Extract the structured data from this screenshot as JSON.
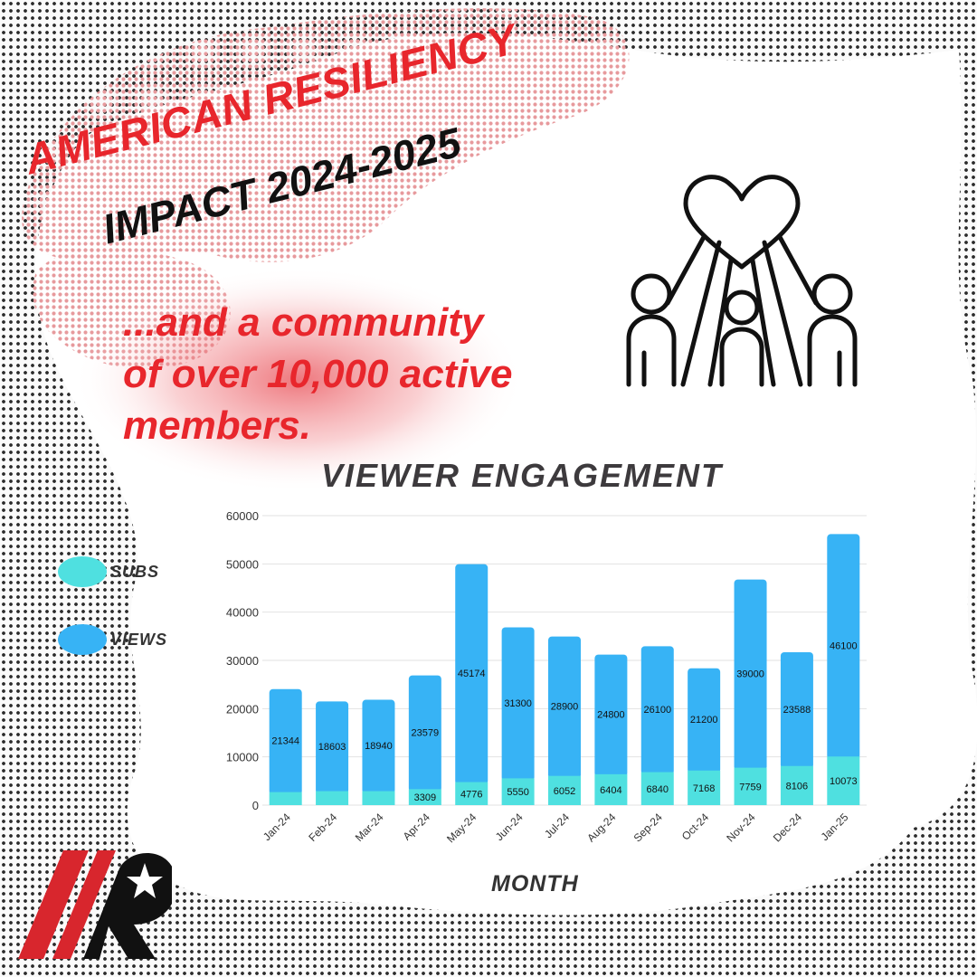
{
  "header": {
    "title_line1": "AMERICAN RESILIENCY",
    "title_line2": "IMPACT 2024-2025"
  },
  "tagline": {
    "line1": "...and a community",
    "line2": "of over 10,000 active",
    "line3": "members."
  },
  "icons": {
    "community": "heart-hands-community-icon",
    "logo": "american-resiliency-star-logo"
  },
  "colors": {
    "red": "#e8262c",
    "subs": "#4fe0e0",
    "views": "#37b3f5"
  },
  "chart_data": {
    "type": "bar",
    "stacked": true,
    "title": "VIEWER ENGAGEMENT",
    "xlabel": "MONTH",
    "ylabel": "",
    "ylim": [
      0,
      60000
    ],
    "yticks": [
      0,
      10000,
      20000,
      30000,
      40000,
      50000,
      60000
    ],
    "grid": true,
    "legend_position": "left",
    "categories": [
      "Jan-24",
      "Feb-24",
      "Mar-24",
      "Apr-24",
      "May-24",
      "Jun-24",
      "Jul-24",
      "Aug-24",
      "Sep-24",
      "Oct-24",
      "Nov-24",
      "Dec-24",
      "Jan-25"
    ],
    "series": [
      {
        "name": "SUBS",
        "color": "#4fe0e0",
        "values": [
          2700,
          2900,
          2900,
          3309,
          4776,
          5550,
          6052,
          6404,
          6840,
          7168,
          7759,
          8106,
          10073
        ],
        "labels": [
          "",
          "",
          "",
          "3309",
          "4776",
          "5550",
          "6052",
          "6404",
          "6840",
          "7168",
          "7759",
          "8106",
          "10073"
        ]
      },
      {
        "name": "VIEWS",
        "color": "#37b3f5",
        "values": [
          21344,
          18603,
          18940,
          23579,
          45174,
          31300,
          28900,
          24800,
          26100,
          21200,
          39000,
          23588,
          46100
        ],
        "labels": [
          "21344",
          "18603",
          "18940",
          "23579",
          "45174",
          "31300",
          "28900",
          "24800",
          "26100",
          "21200",
          "39000",
          "23588",
          "46100"
        ]
      }
    ]
  }
}
